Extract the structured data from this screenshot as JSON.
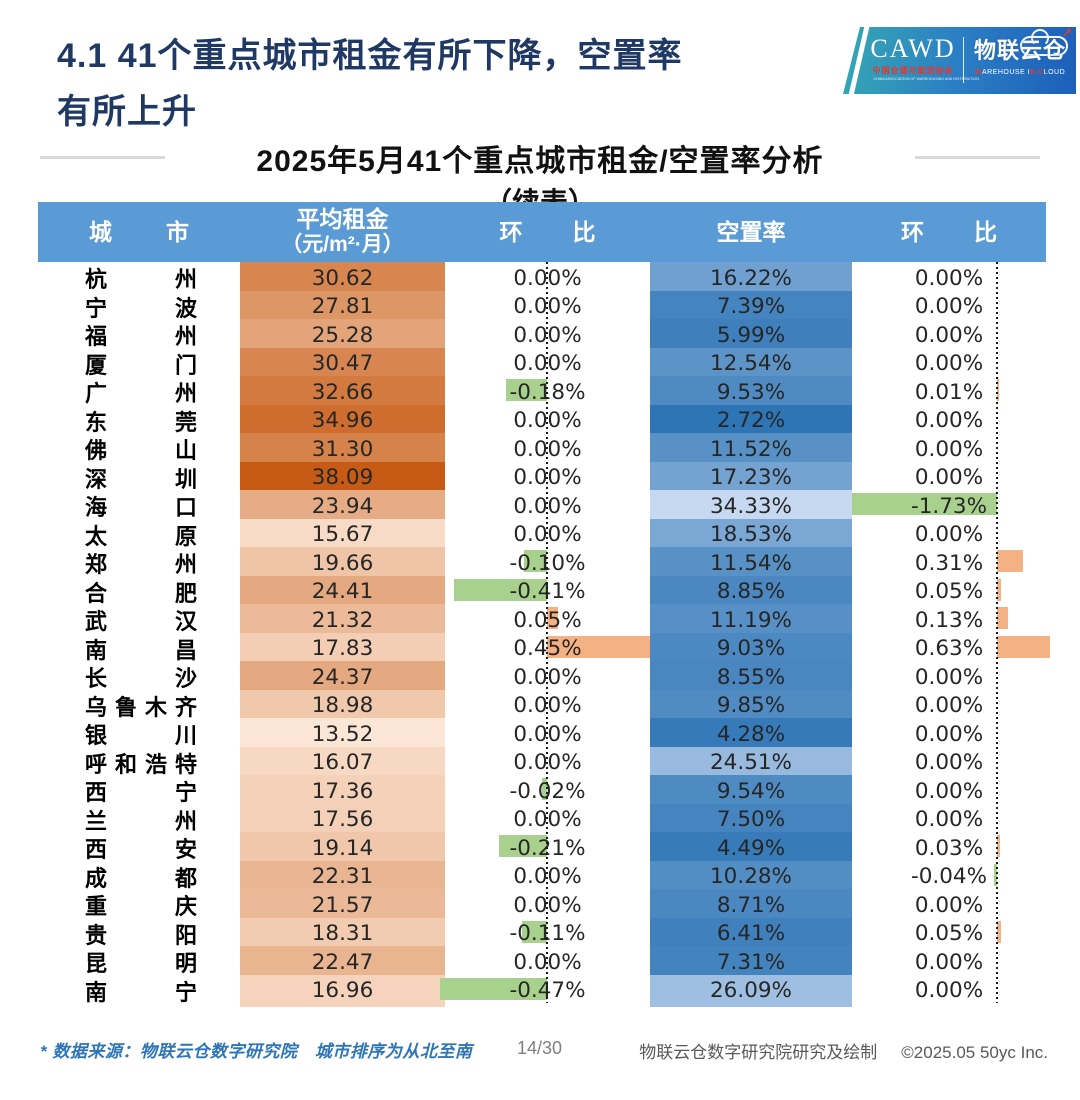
{
  "page": {
    "title_line1": "4.1 41个重点城市租金有所下降，空置率",
    "title_line2": "有所上升"
  },
  "logo": {
    "cawd": "CAWD",
    "cawd_sub": "中国仓储与配送协会",
    "cawd_sub_en": "CHINA ASSOCIATION OF WAREHOUSING AND DISTRIBUTION",
    "brand": "物联云仓",
    "brand_sub_w": "W",
    "brand_sub_mid": "AREHOUSE I",
    "brand_sub_n": "N",
    "brand_sub_c": "C",
    "brand_sub_end": "LOUD",
    "cloud_arrow": "↗"
  },
  "subtitle": {
    "line1": "2025年5月41个重点城市租金/空置率分析",
    "line2": "（续表）"
  },
  "table": {
    "headers": {
      "city": "城市",
      "rent_line1": "平均租金",
      "rent_line2": "（元/m²·月）",
      "rent_mom": "环比",
      "vacancy": "空置率",
      "vacancy_mom": "环比"
    },
    "rows": [
      {
        "city": "杭州",
        "rent": 30.62,
        "rent_mom": 0.0,
        "vacancy": 16.22,
        "vacancy_mom": 0.0
      },
      {
        "city": "宁波",
        "rent": 27.81,
        "rent_mom": 0.0,
        "vacancy": 7.39,
        "vacancy_mom": 0.0
      },
      {
        "city": "福州",
        "rent": 25.28,
        "rent_mom": 0.0,
        "vacancy": 5.99,
        "vacancy_mom": 0.0
      },
      {
        "city": "厦门",
        "rent": 30.47,
        "rent_mom": 0.0,
        "vacancy": 12.54,
        "vacancy_mom": 0.0
      },
      {
        "city": "广州",
        "rent": 32.66,
        "rent_mom": -0.18,
        "vacancy": 9.53,
        "vacancy_mom": 0.01
      },
      {
        "city": "东莞",
        "rent": 34.96,
        "rent_mom": 0.0,
        "vacancy": 2.72,
        "vacancy_mom": 0.0
      },
      {
        "city": "佛山",
        "rent": 31.3,
        "rent_mom": 0.0,
        "vacancy": 11.52,
        "vacancy_mom": 0.0
      },
      {
        "city": "深圳",
        "rent": 38.09,
        "rent_mom": 0.0,
        "vacancy": 17.23,
        "vacancy_mom": 0.0
      },
      {
        "city": "海口",
        "rent": 23.94,
        "rent_mom": 0.0,
        "vacancy": 34.33,
        "vacancy_mom": -1.73
      },
      {
        "city": "太原",
        "rent": 15.67,
        "rent_mom": 0.0,
        "vacancy": 18.53,
        "vacancy_mom": 0.0
      },
      {
        "city": "郑州",
        "rent": 19.66,
        "rent_mom": -0.1,
        "vacancy": 11.54,
        "vacancy_mom": 0.31
      },
      {
        "city": "合肥",
        "rent": 24.41,
        "rent_mom": -0.41,
        "vacancy": 8.85,
        "vacancy_mom": 0.05
      },
      {
        "city": "武汉",
        "rent": 21.32,
        "rent_mom": 0.05,
        "vacancy": 11.19,
        "vacancy_mom": 0.13
      },
      {
        "city": "南昌",
        "rent": 17.83,
        "rent_mom": 0.45,
        "vacancy": 9.03,
        "vacancy_mom": 0.63
      },
      {
        "city": "长沙",
        "rent": 24.37,
        "rent_mom": 0.0,
        "vacancy": 8.55,
        "vacancy_mom": 0.0
      },
      {
        "city": "乌鲁木齐",
        "rent": 18.98,
        "rent_mom": 0.0,
        "vacancy": 9.85,
        "vacancy_mom": 0.0
      },
      {
        "city": "银川",
        "rent": 13.52,
        "rent_mom": 0.0,
        "vacancy": 4.28,
        "vacancy_mom": 0.0
      },
      {
        "city": "呼和浩特",
        "rent": 16.07,
        "rent_mom": 0.0,
        "vacancy": 24.51,
        "vacancy_mom": 0.0
      },
      {
        "city": "西宁",
        "rent": 17.36,
        "rent_mom": -0.02,
        "vacancy": 9.54,
        "vacancy_mom": 0.0
      },
      {
        "city": "兰州",
        "rent": 17.56,
        "rent_mom": 0.0,
        "vacancy": 7.5,
        "vacancy_mom": 0.0
      },
      {
        "city": "西安",
        "rent": 19.14,
        "rent_mom": -0.21,
        "vacancy": 4.49,
        "vacancy_mom": 0.03
      },
      {
        "city": "成都",
        "rent": 22.31,
        "rent_mom": 0.0,
        "vacancy": 10.28,
        "vacancy_mom": -0.04
      },
      {
        "city": "重庆",
        "rent": 21.57,
        "rent_mom": 0.0,
        "vacancy": 8.71,
        "vacancy_mom": 0.0
      },
      {
        "city": "贵阳",
        "rent": 18.31,
        "rent_mom": -0.11,
        "vacancy": 6.41,
        "vacancy_mom": 0.05
      },
      {
        "city": "昆明",
        "rent": 22.47,
        "rent_mom": 0.0,
        "vacancy": 7.31,
        "vacancy_mom": 0.0
      },
      {
        "city": "南宁",
        "rent": 16.96,
        "rent_mom": -0.47,
        "vacancy": 26.09,
        "vacancy_mom": 0.0
      }
    ]
  },
  "footer": {
    "source_note": "* 数据来源：物联云仓数字研究院　城市排序为从北至南",
    "page_number": "14/30",
    "credit": "物联云仓数字研究院研究及绘制",
    "copyright": "©2025.05 50yc Inc."
  },
  "colors": {
    "header_bg": "#5B9BD5",
    "title": "#1F3864",
    "positive_bar": "#F4B183",
    "negative_bar": "#A9D18E",
    "rent_scale_min": "#FCE7D7",
    "rent_scale_max": "#C75B15",
    "vacancy_scale_low": "#2E75B6",
    "vacancy_scale_high": "#C6D9F0",
    "footer_blue": "#2E75B6",
    "footer_gray": "#595959"
  }
}
